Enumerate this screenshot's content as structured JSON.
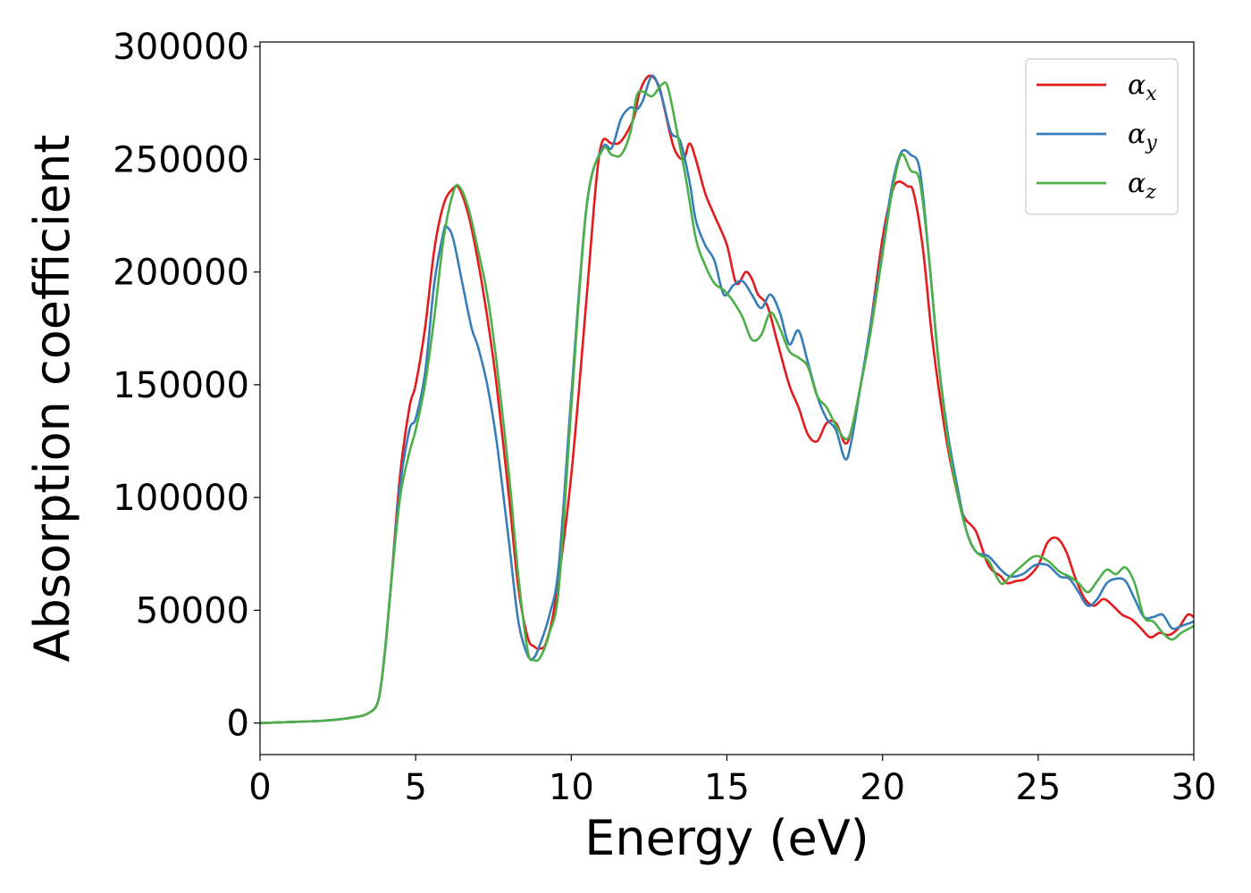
{
  "chart_data": {
    "type": "line",
    "title": "",
    "xlabel": "Energy (eV)",
    "ylabel": "Absorption coefficient",
    "xlim": [
      0,
      30
    ],
    "ylim": [
      -14000,
      302000
    ],
    "xticks": [
      0,
      5,
      10,
      15,
      20,
      25,
      30
    ],
    "xtick_labels": [
      "0",
      "5",
      "10",
      "15",
      "20",
      "25",
      "30"
    ],
    "yticks": [
      0,
      50000,
      100000,
      150000,
      200000,
      250000,
      300000
    ],
    "ytick_labels": [
      "0",
      "50000",
      "100000",
      "150000",
      "200000",
      "250000",
      "300000"
    ],
    "grid": false,
    "legend_position": "top-right",
    "series": [
      {
        "name": "α_x",
        "label_main": "α",
        "label_sub": "x",
        "color": "#e41a1c",
        "x": [
          0,
          2,
          3,
          3.5,
          3.8,
          4,
          4.2,
          4.5,
          4.8,
          5,
          5.3,
          5.6,
          5.9,
          6.2,
          6.4,
          6.7,
          7,
          7.3,
          7.6,
          8,
          8.3,
          8.6,
          8.8,
          9,
          9.2,
          9.5,
          10,
          10.5,
          10.8,
          11,
          11.3,
          11.6,
          12,
          12.2,
          12.5,
          12.8,
          13,
          13.3,
          13.6,
          13.8,
          14,
          14.3,
          14.6,
          15,
          15.3,
          15.6,
          15.8,
          16,
          16.3,
          16.6,
          17,
          17.3,
          17.6,
          17.9,
          18.2,
          18.5,
          18.8,
          19,
          19.3,
          19.6,
          20,
          20.3,
          20.5,
          20.8,
          21,
          21.3,
          21.6,
          22,
          22.3,
          22.6,
          23,
          23.4,
          23.8,
          24,
          24.3,
          24.6,
          25,
          25.3,
          25.6,
          25.9,
          26.2,
          26.5,
          26.8,
          27.1,
          27.4,
          27.7,
          28,
          28.3,
          28.6,
          28.9,
          29.2,
          29.5,
          29.8,
          30
        ],
        "y": [
          0,
          1000,
          2500,
          4500,
          10000,
          30000,
          60000,
          110000,
          140000,
          150000,
          175000,
          210000,
          230000,
          237000,
          237000,
          225000,
          205000,
          180000,
          150000,
          100000,
          60000,
          38000,
          34000,
          33000,
          36000,
          55000,
          110000,
          190000,
          240000,
          258000,
          257000,
          258000,
          268000,
          280000,
          287000,
          283000,
          272000,
          255000,
          250000,
          257000,
          250000,
          235000,
          225000,
          212000,
          195000,
          200000,
          197000,
          190000,
          185000,
          170000,
          150000,
          140000,
          128000,
          125000,
          133000,
          133000,
          124000,
          130000,
          150000,
          175000,
          215000,
          235000,
          240000,
          238000,
          235000,
          210000,
          170000,
          130000,
          108000,
          92000,
          85000,
          70000,
          65000,
          62000,
          63000,
          64000,
          70000,
          80000,
          82000,
          76000,
          64000,
          55000,
          52000,
          55000,
          52000,
          48000,
          46000,
          42000,
          38000,
          40000,
          39000,
          42000,
          48000,
          47000
        ]
      },
      {
        "name": "α_y",
        "label_main": "α",
        "label_sub": "y",
        "color": "#377eb8",
        "x": [
          0,
          2,
          3,
          3.5,
          3.8,
          4,
          4.2,
          4.5,
          4.8,
          5,
          5.3,
          5.6,
          5.9,
          6,
          6.2,
          6.5,
          6.8,
          7,
          7.3,
          7.6,
          8,
          8.3,
          8.6,
          8.8,
          9,
          9.3,
          9.6,
          10,
          10.5,
          11,
          11.3,
          11.6,
          11.9,
          12.1,
          12.3,
          12.6,
          12.9,
          13.2,
          13.5,
          13.8,
          14,
          14.3,
          14.6,
          14.9,
          15.2,
          15.5,
          15.8,
          16.1,
          16.4,
          16.7,
          17,
          17.3,
          17.6,
          17.9,
          18.2,
          18.5,
          18.8,
          19,
          19.3,
          19.6,
          20,
          20.3,
          20.6,
          20.9,
          21.2,
          21.5,
          21.8,
          22.1,
          22.4,
          22.7,
          23,
          23.4,
          23.8,
          24.1,
          24.5,
          24.9,
          25.3,
          25.7,
          26,
          26.3,
          26.6,
          26.9,
          27.2,
          27.5,
          27.8,
          28.1,
          28.4,
          28.7,
          29,
          29.3,
          29.6,
          30
        ],
        "y": [
          0,
          1000,
          2500,
          4500,
          10000,
          30000,
          60000,
          105000,
          130000,
          135000,
          155000,
          195000,
          218000,
          220000,
          215000,
          195000,
          175000,
          167000,
          150000,
          125000,
          80000,
          45000,
          30000,
          29000,
          35000,
          48000,
          70000,
          145000,
          230000,
          255000,
          255000,
          268000,
          273000,
          272000,
          276000,
          287000,
          278000,
          262000,
          258000,
          240000,
          223000,
          212000,
          205000,
          190000,
          194000,
          196000,
          190000,
          184000,
          190000,
          182000,
          168000,
          174000,
          160000,
          145000,
          135000,
          130000,
          117000,
          125000,
          150000,
          175000,
          210000,
          238000,
          253000,
          252000,
          245000,
          205000,
          160000,
          128000,
          105000,
          85000,
          76000,
          74000,
          68000,
          65000,
          66000,
          70000,
          70000,
          65000,
          64000,
          58000,
          52000,
          55000,
          62000,
          64000,
          63000,
          55000,
          47000,
          47000,
          48000,
          42000,
          43000,
          45000
        ]
      },
      {
        "name": "α_z",
        "label_main": "α",
        "label_sub": "z",
        "color": "#4daf4a",
        "x": [
          0,
          2,
          3,
          3.5,
          3.8,
          4,
          4.2,
          4.5,
          4.8,
          5,
          5.3,
          5.6,
          5.9,
          6.2,
          6.4,
          6.7,
          7,
          7.3,
          7.6,
          8,
          8.3,
          8.6,
          8.8,
          9,
          9.3,
          9.6,
          10,
          10.5,
          11,
          11.3,
          11.6,
          11.9,
          12.1,
          12.3,
          12.6,
          12.9,
          13.1,
          13.4,
          13.7,
          14,
          14.3,
          14.6,
          14.9,
          15.2,
          15.5,
          15.8,
          16.1,
          16.4,
          16.7,
          17,
          17.3,
          17.6,
          17.9,
          18.2,
          18.5,
          18.8,
          19,
          19.3,
          19.6,
          20,
          20.3,
          20.6,
          20.9,
          21.2,
          21.5,
          21.8,
          22.1,
          22.4,
          22.7,
          23,
          23.4,
          23.8,
          24.1,
          24.5,
          24.9,
          25.3,
          25.7,
          26,
          26.3,
          26.6,
          26.9,
          27.2,
          27.5,
          27.8,
          28.1,
          28.4,
          28.7,
          29,
          29.3,
          29.6,
          30
        ],
        "y": [
          0,
          1000,
          2500,
          4500,
          10000,
          30000,
          60000,
          100000,
          120000,
          130000,
          150000,
          180000,
          215000,
          235000,
          238000,
          228000,
          210000,
          190000,
          160000,
          110000,
          65000,
          32000,
          28000,
          29000,
          40000,
          60000,
          140000,
          230000,
          254000,
          252000,
          252000,
          262000,
          278000,
          280000,
          278000,
          283000,
          282000,
          262000,
          240000,
          215000,
          203000,
          195000,
          192000,
          187000,
          180000,
          170000,
          172000,
          182000,
          175000,
          165000,
          162000,
          158000,
          145000,
          140000,
          132000,
          126000,
          130000,
          150000,
          172000,
          208000,
          235000,
          252000,
          245000,
          240000,
          205000,
          160000,
          125000,
          102000,
          85000,
          76000,
          72000,
          62000,
          65000,
          70000,
          74000,
          72000,
          67000,
          65000,
          62000,
          58000,
          63000,
          68000,
          66000,
          69000,
          62000,
          47000,
          45000,
          40000,
          37000,
          40000,
          43000
        ]
      }
    ]
  }
}
